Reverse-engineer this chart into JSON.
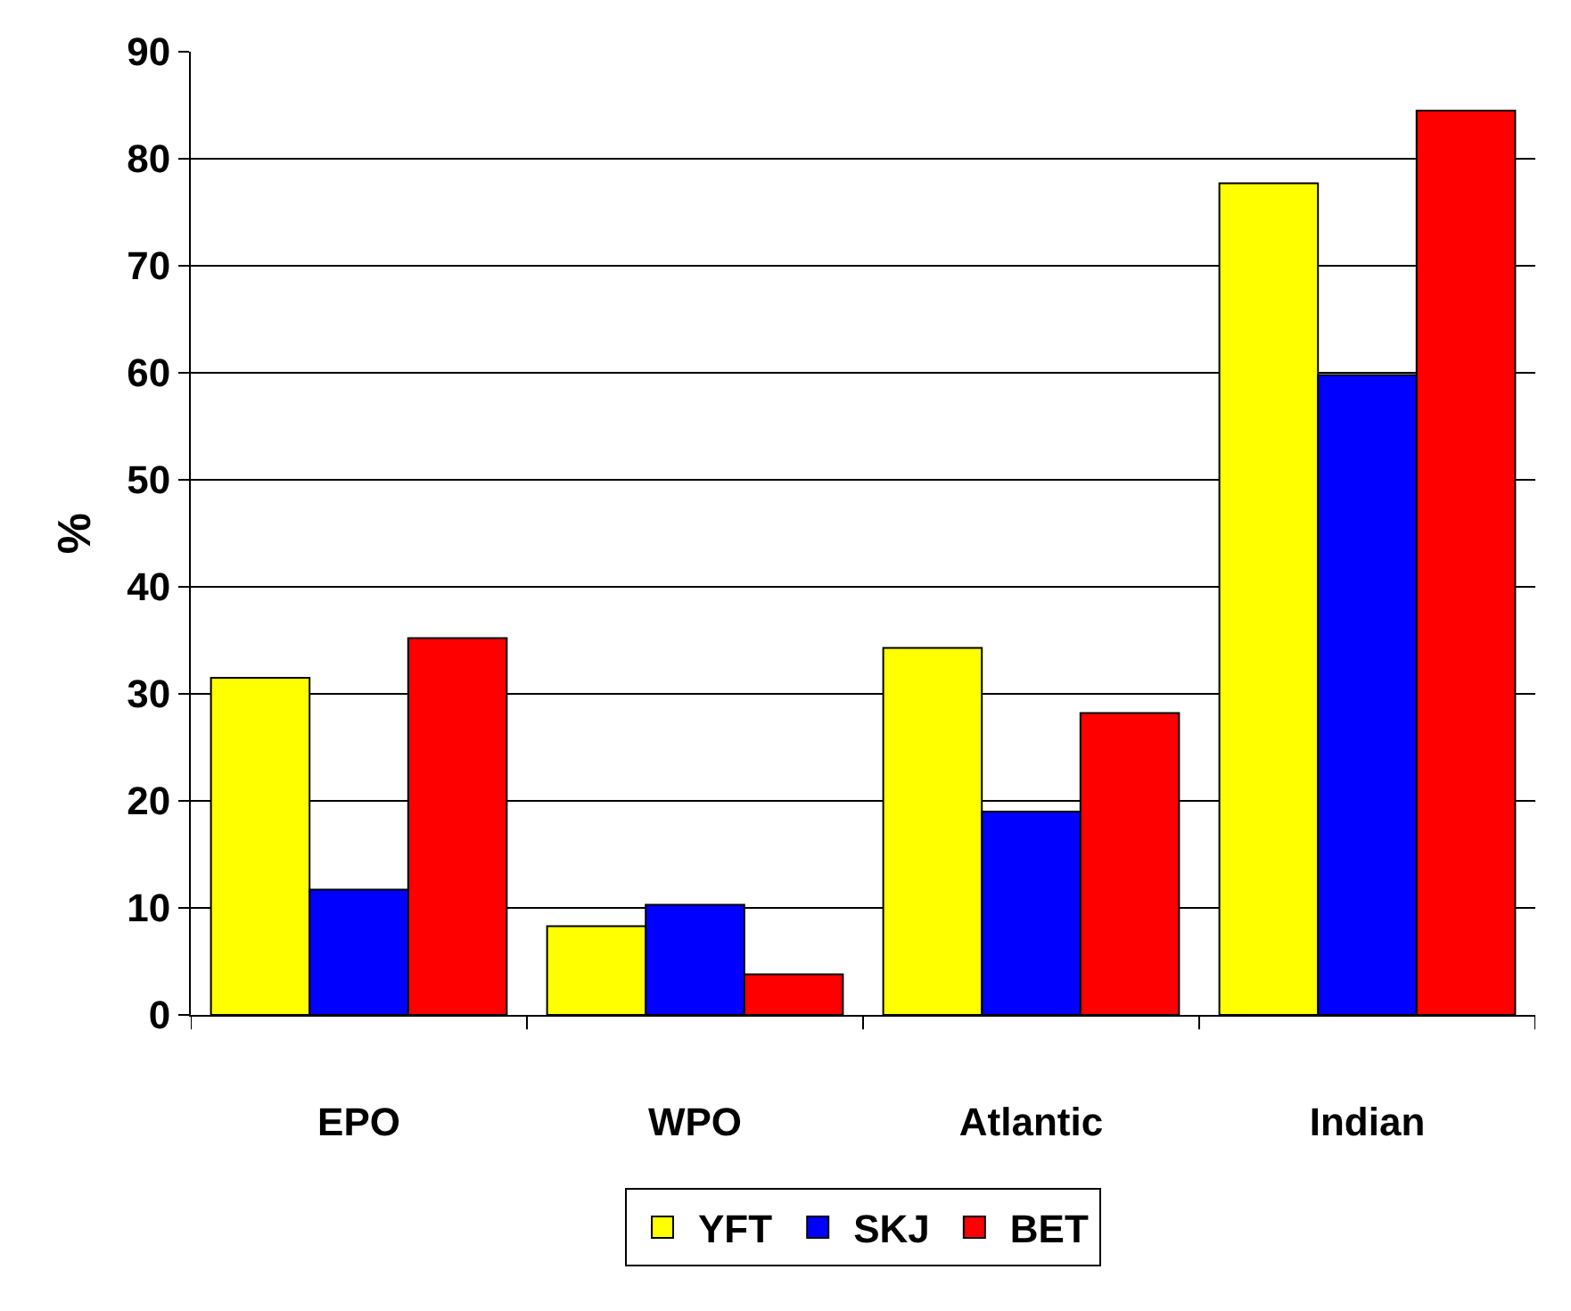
{
  "chart_data": {
    "type": "bar",
    "ylabel": "%",
    "categories": [
      "EPO",
      "WPO",
      "Atlantic",
      "Indian"
    ],
    "series": [
      {
        "name": "YFT",
        "color": "#ffff00",
        "values": [
          31.5,
          8.3,
          34.3,
          77.7
        ]
      },
      {
        "name": "SKJ",
        "color": "#0000ff",
        "values": [
          11.7,
          10.3,
          19,
          59.8
        ]
      },
      {
        "name": "BET",
        "color": "#ff0000",
        "values": [
          35.2,
          3.8,
          28.2,
          84.5
        ]
      }
    ],
    "ylim": [
      0,
      90
    ],
    "yticks": [
      0,
      10,
      20,
      30,
      40,
      50,
      60,
      70,
      80,
      90
    ],
    "grid": "y",
    "legend": "bottom"
  }
}
